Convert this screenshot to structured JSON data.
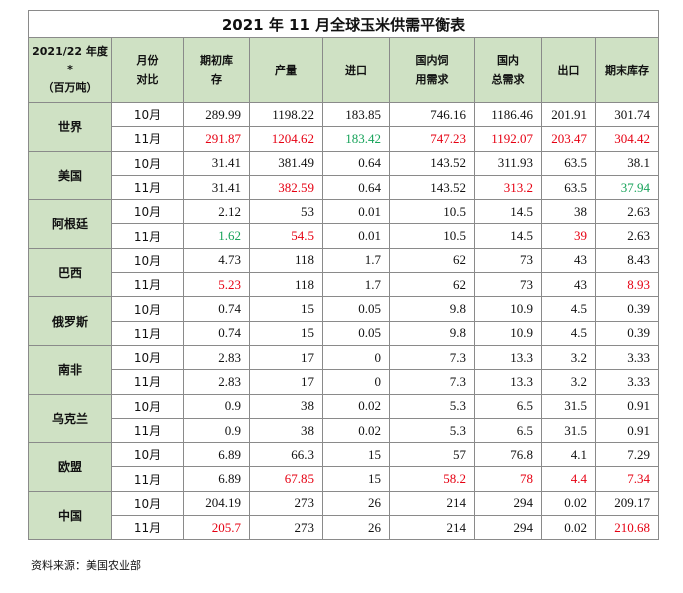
{
  "title": "2021 年 11 月全球玉米供需平衡表",
  "header": {
    "corner": [
      "2021/22 年度",
      "*",
      "（百万吨）"
    ],
    "columns": [
      [
        "月份",
        "对比"
      ],
      [
        "期初库",
        "存"
      ],
      [
        "产量"
      ],
      [
        "进口"
      ],
      [
        "国内饲",
        "用需求"
      ],
      [
        "国内",
        "总需求"
      ],
      [
        "出口"
      ],
      [
        "期末库存"
      ]
    ]
  },
  "rows": [
    {
      "country": "世界",
      "months": [
        {
          "m": "10月",
          "v": [
            "289.99",
            "1198.22",
            "183.85",
            "746.16",
            "1186.46",
            "201.91",
            "301.74"
          ],
          "c": [
            "",
            "",
            "",
            "",
            "",
            "",
            ""
          ]
        },
        {
          "m": "11月",
          "v": [
            "291.87",
            "1204.62",
            "183.42",
            "747.23",
            "1192.07",
            "203.47",
            "304.42"
          ],
          "c": [
            "red",
            "red",
            "green",
            "red",
            "red",
            "red",
            "red"
          ]
        }
      ]
    },
    {
      "country": "美国",
      "months": [
        {
          "m": "10月",
          "v": [
            "31.41",
            "381.49",
            "0.64",
            "143.52",
            "311.93",
            "63.5",
            "38.1"
          ],
          "c": [
            "",
            "",
            "",
            "",
            "",
            "",
            ""
          ]
        },
        {
          "m": "11月",
          "v": [
            "31.41",
            "382.59",
            "0.64",
            "143.52",
            "313.2",
            "63.5",
            "37.94"
          ],
          "c": [
            "",
            "red",
            "",
            "",
            "red",
            "",
            "green"
          ]
        }
      ]
    },
    {
      "country": "阿根廷",
      "months": [
        {
          "m": "10月",
          "v": [
            "2.12",
            "53",
            "0.01",
            "10.5",
            "14.5",
            "38",
            "2.63"
          ],
          "c": [
            "",
            "",
            "",
            "",
            "",
            "",
            ""
          ]
        },
        {
          "m": "11月",
          "v": [
            "1.62",
            "54.5",
            "0.01",
            "10.5",
            "14.5",
            "39",
            "2.63"
          ],
          "c": [
            "green",
            "red",
            "",
            "",
            "",
            "red",
            ""
          ]
        }
      ]
    },
    {
      "country": "巴西",
      "months": [
        {
          "m": "10月",
          "v": [
            "4.73",
            "118",
            "1.7",
            "62",
            "73",
            "43",
            "8.43"
          ],
          "c": [
            "",
            "",
            "",
            "",
            "",
            "",
            ""
          ]
        },
        {
          "m": "11月",
          "v": [
            "5.23",
            "118",
            "1.7",
            "62",
            "73",
            "43",
            "8.93"
          ],
          "c": [
            "red",
            "",
            "",
            "",
            "",
            "",
            "red"
          ]
        }
      ]
    },
    {
      "country": "俄罗斯",
      "months": [
        {
          "m": "10月",
          "v": [
            "0.74",
            "15",
            "0.05",
            "9.8",
            "10.9",
            "4.5",
            "0.39"
          ],
          "c": [
            "",
            "",
            "",
            "",
            "",
            "",
            ""
          ]
        },
        {
          "m": "11月",
          "v": [
            "0.74",
            "15",
            "0.05",
            "9.8",
            "10.9",
            "4.5",
            "0.39"
          ],
          "c": [
            "",
            "",
            "",
            "",
            "",
            "",
            ""
          ]
        }
      ]
    },
    {
      "country": "南非",
      "months": [
        {
          "m": "10月",
          "v": [
            "2.83",
            "17",
            "0",
            "7.3",
            "13.3",
            "3.2",
            "3.33"
          ],
          "c": [
            "",
            "",
            "",
            "",
            "",
            "",
            ""
          ]
        },
        {
          "m": "11月",
          "v": [
            "2.83",
            "17",
            "0",
            "7.3",
            "13.3",
            "3.2",
            "3.33"
          ],
          "c": [
            "",
            "",
            "",
            "",
            "",
            "",
            ""
          ]
        }
      ]
    },
    {
      "country": "乌克兰",
      "months": [
        {
          "m": "10月",
          "v": [
            "0.9",
            "38",
            "0.02",
            "5.3",
            "6.5",
            "31.5",
            "0.91"
          ],
          "c": [
            "",
            "",
            "",
            "",
            "",
            "",
            ""
          ]
        },
        {
          "m": "11月",
          "v": [
            "0.9",
            "38",
            "0.02",
            "5.3",
            "6.5",
            "31.5",
            "0.91"
          ],
          "c": [
            "",
            "",
            "",
            "",
            "",
            "",
            ""
          ]
        }
      ]
    },
    {
      "country": "欧盟",
      "months": [
        {
          "m": "10月",
          "v": [
            "6.89",
            "66.3",
            "15",
            "57",
            "76.8",
            "4.1",
            "7.29"
          ],
          "c": [
            "",
            "",
            "",
            "",
            "",
            "",
            ""
          ]
        },
        {
          "m": "11月",
          "v": [
            "6.89",
            "67.85",
            "15",
            "58.2",
            "78",
            "4.4",
            "7.34"
          ],
          "c": [
            "",
            "red",
            "",
            "red",
            "red",
            "red",
            "red"
          ]
        }
      ]
    },
    {
      "country": "中国",
      "months": [
        {
          "m": "10月",
          "v": [
            "204.19",
            "273",
            "26",
            "214",
            "294",
            "0.02",
            "209.17"
          ],
          "c": [
            "",
            "",
            "",
            "",
            "",
            "",
            ""
          ]
        },
        {
          "m": "11月",
          "v": [
            "205.7",
            "273",
            "26",
            "214",
            "294",
            "0.02",
            "210.68"
          ],
          "c": [
            "red",
            "",
            "",
            "",
            "",
            "",
            "red"
          ]
        }
      ]
    }
  ],
  "source": "资料来源：美国农业部"
}
